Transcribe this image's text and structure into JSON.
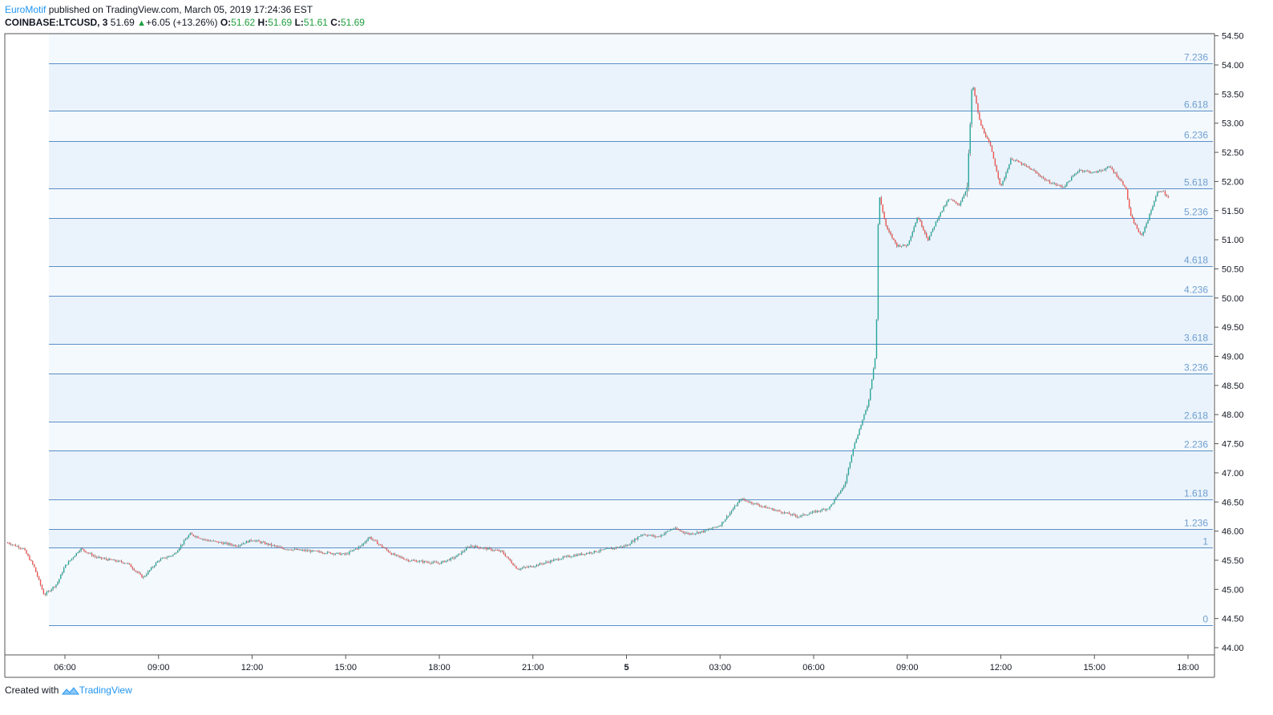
{
  "header": {
    "author": "EuroMotif",
    "published_text": "published on TradingView.com, March 05, 2019 17:24:36 EST",
    "symbol": "COINBASE:LTCUSD, 3",
    "last": "51.69",
    "change": "+6.05 (+13.26%)",
    "o_label": "O:",
    "o": "51.62",
    "h_label": "H:",
    "h": "51.69",
    "l_label": "L:",
    "l": "51.61",
    "c_label": "C:",
    "c": "51.69"
  },
  "footer": {
    "created_with": "Created with",
    "brand": "TradingView"
  },
  "colors": {
    "up": "#26a69a",
    "down": "#ef5350",
    "fib_line": "#5b8fc7",
    "fib_text": "#6f9fd0",
    "fib_fill": "#eaf3fb"
  },
  "chart_data": {
    "type": "candlestick",
    "symbol": "COINBASE:LTCUSD",
    "interval": "3",
    "ylim": [
      43.8,
      54.55
    ],
    "y_ticks": [
      "54.50",
      "54.00",
      "53.50",
      "53.00",
      "52.50",
      "52.00",
      "51.50",
      "51.00",
      "50.50",
      "50.00",
      "49.50",
      "49.00",
      "48.50",
      "48.00",
      "47.50",
      "47.00",
      "46.50",
      "46.00",
      "45.50",
      "45.00",
      "44.50",
      "44.00"
    ],
    "x_ticks": [
      "06:00",
      "09:00",
      "12:00",
      "15:00",
      "18:00",
      "21:00",
      "5",
      "03:00",
      "06:00",
      "09:00",
      "12:00",
      "15:00",
      "18:00"
    ],
    "fib_levels": [
      {
        "label": "0",
        "price": 44.38
      },
      {
        "label": "1",
        "price": 45.72
      },
      {
        "label": "1.236",
        "price": 46.04
      },
      {
        "label": "1.618",
        "price": 46.55
      },
      {
        "label": "2.236",
        "price": 47.38
      },
      {
        "label": "2.618",
        "price": 47.88
      },
      {
        "label": "3.236",
        "price": 48.71
      },
      {
        "label": "3.618",
        "price": 49.21
      },
      {
        "label": "4.236",
        "price": 50.04
      },
      {
        "label": "4.618",
        "price": 50.55
      },
      {
        "label": "5.236",
        "price": 51.37
      },
      {
        "label": "5.618",
        "price": 51.88
      },
      {
        "label": "6.236",
        "price": 52.7
      },
      {
        "label": "6.618",
        "price": 53.21
      },
      {
        "label": "7.236",
        "price": 54.03
      }
    ],
    "price_path": [
      {
        "t": "04:10",
        "p": 45.8
      },
      {
        "t": "04:40",
        "p": 45.7
      },
      {
        "t": "05:00",
        "p": 45.4
      },
      {
        "t": "05:20",
        "p": 44.9
      },
      {
        "t": "05:45",
        "p": 45.1
      },
      {
        "t": "06:00",
        "p": 45.4
      },
      {
        "t": "06:30",
        "p": 45.7
      },
      {
        "t": "07:00",
        "p": 45.55
      },
      {
        "t": "08:00",
        "p": 45.45
      },
      {
        "t": "08:30",
        "p": 45.2
      },
      {
        "t": "09:00",
        "p": 45.5
      },
      {
        "t": "09:30",
        "p": 45.6
      },
      {
        "t": "10:00",
        "p": 45.95
      },
      {
        "t": "10:30",
        "p": 45.85
      },
      {
        "t": "11:30",
        "p": 45.75
      },
      {
        "t": "12:00",
        "p": 45.85
      },
      {
        "t": "13:00",
        "p": 45.7
      },
      {
        "t": "14:00",
        "p": 45.65
      },
      {
        "t": "15:00",
        "p": 45.6
      },
      {
        "t": "15:30",
        "p": 45.75
      },
      {
        "t": "15:45",
        "p": 45.9
      },
      {
        "t": "16:30",
        "p": 45.6
      },
      {
        "t": "17:00",
        "p": 45.5
      },
      {
        "t": "18:00",
        "p": 45.45
      },
      {
        "t": "18:30",
        "p": 45.55
      },
      {
        "t": "19:00",
        "p": 45.75
      },
      {
        "t": "20:00",
        "p": 45.65
      },
      {
        "t": "20:30",
        "p": 45.35
      },
      {
        "t": "21:00",
        "p": 45.4
      },
      {
        "t": "22:00",
        "p": 45.55
      },
      {
        "t": "23:00",
        "p": 45.65
      },
      {
        "t": "00:00",
        "p": 45.75
      },
      {
        "t": "00:30",
        "p": 45.95
      },
      {
        "t": "01:00",
        "p": 45.9
      },
      {
        "t": "01:30",
        "p": 46.05
      },
      {
        "t": "02:00",
        "p": 45.95
      },
      {
        "t": "02:30",
        "p": 46.0
      },
      {
        "t": "03:00",
        "p": 46.1
      },
      {
        "t": "03:40",
        "p": 46.55
      },
      {
        "t": "04:30",
        "p": 46.4
      },
      {
        "t": "05:30",
        "p": 46.25
      },
      {
        "t": "06:30",
        "p": 46.4
      },
      {
        "t": "07:00",
        "p": 46.8
      },
      {
        "t": "07:15",
        "p": 47.4
      },
      {
        "t": "07:45",
        "p": 48.2
      },
      {
        "t": "08:00",
        "p": 49.1
      },
      {
        "t": "08:05",
        "p": 51.8
      },
      {
        "t": "08:20",
        "p": 51.2
      },
      {
        "t": "08:40",
        "p": 50.9
      },
      {
        "t": "09:00",
        "p": 50.9
      },
      {
        "t": "09:20",
        "p": 51.4
      },
      {
        "t": "09:40",
        "p": 51.0
      },
      {
        "t": "10:00",
        "p": 51.4
      },
      {
        "t": "10:20",
        "p": 51.7
      },
      {
        "t": "10:40",
        "p": 51.6
      },
      {
        "t": "10:55",
        "p": 51.9
      },
      {
        "t": "11:05",
        "p": 53.7
      },
      {
        "t": "11:20",
        "p": 53.0
      },
      {
        "t": "11:40",
        "p": 52.6
      },
      {
        "t": "12:00",
        "p": 51.9
      },
      {
        "t": "12:20",
        "p": 52.4
      },
      {
        "t": "12:40",
        "p": 52.3
      },
      {
        "t": "13:00",
        "p": 52.2
      },
      {
        "t": "13:30",
        "p": 52.0
      },
      {
        "t": "14:00",
        "p": 51.9
      },
      {
        "t": "14:30",
        "p": 52.2
      },
      {
        "t": "15:00",
        "p": 52.15
      },
      {
        "t": "15:30",
        "p": 52.25
      },
      {
        "t": "16:00",
        "p": 51.9
      },
      {
        "t": "16:10",
        "p": 51.4
      },
      {
        "t": "16:30",
        "p": 51.05
      },
      {
        "t": "16:45",
        "p": 51.4
      },
      {
        "t": "17:00",
        "p": 51.8
      },
      {
        "t": "17:10",
        "p": 51.85
      },
      {
        "t": "17:24",
        "p": 51.69
      }
    ]
  }
}
